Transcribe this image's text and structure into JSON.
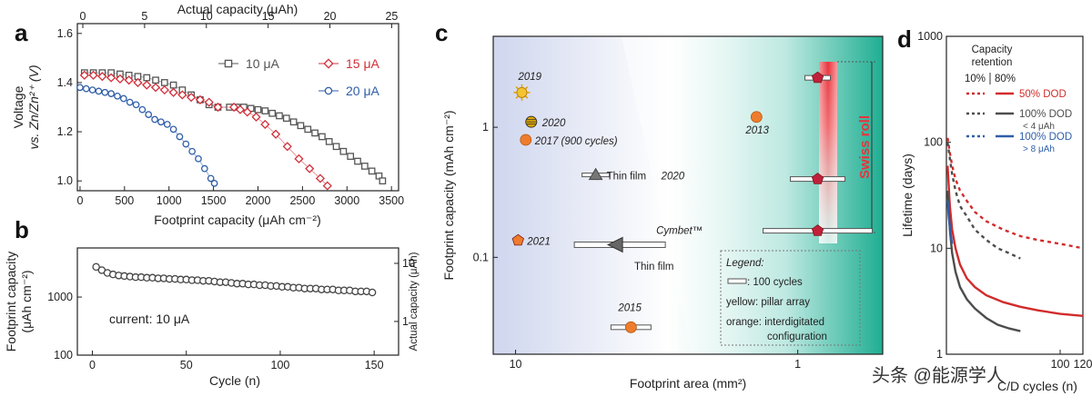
{
  "watermark": "头条 @能源学人",
  "chart_data": [
    {
      "panel": "a",
      "type": "line",
      "top_axis": {
        "label": "Actual capacity (μAh)",
        "ticks": [
          0,
          5,
          10,
          15,
          20,
          25
        ],
        "range": [
          0,
          26
        ]
      },
      "xlabel": "Footprint capacity (μAh cm⁻²)",
      "ylabel": "Voltage vs. Zn/Zn²⁺ (V)",
      "ylabel_lines": [
        "Voltage",
        "vs. Zn/Zn²⁺ (V)"
      ],
      "xlim": [
        -30,
        3580
      ],
      "ylim": [
        0.96,
        1.64
      ],
      "xticks": [
        0,
        500,
        1000,
        1500,
        2000,
        2500,
        3000,
        3500
      ],
      "yticks": [
        1.0,
        1.2,
        1.4,
        1.6
      ],
      "series": [
        {
          "name": "10 μA",
          "color": "#555555",
          "marker": "square",
          "x": [
            50,
            150,
            250,
            350,
            450,
            550,
            650,
            750,
            850,
            950,
            1050,
            1150,
            1250,
            1350,
            1450,
            1550,
            1680,
            1760,
            1840,
            1920,
            2000,
            2080,
            2160,
            2240,
            2320,
            2400,
            2480,
            2560,
            2640,
            2720,
            2800,
            2880,
            2960,
            3040,
            3120,
            3200,
            3280,
            3360,
            3400
          ],
          "y": [
            1.44,
            1.44,
            1.44,
            1.44,
            1.435,
            1.43,
            1.425,
            1.42,
            1.41,
            1.4,
            1.39,
            1.37,
            1.35,
            1.33,
            1.31,
            1.3,
            1.3,
            1.3,
            1.3,
            1.295,
            1.29,
            1.285,
            1.275,
            1.265,
            1.255,
            1.24,
            1.225,
            1.21,
            1.195,
            1.18,
            1.16,
            1.14,
            1.12,
            1.1,
            1.08,
            1.06,
            1.04,
            1.02,
            1.0
          ]
        },
        {
          "name": "15 μA",
          "color": "#d0303a",
          "marker": "diamond",
          "x": [
            50,
            150,
            250,
            350,
            450,
            550,
            650,
            750,
            850,
            950,
            1050,
            1150,
            1250,
            1350,
            1450,
            1550,
            1730,
            1800,
            1880,
            1980,
            2080,
            2200,
            2330,
            2460,
            2580,
            2700,
            2780
          ],
          "y": [
            1.43,
            1.43,
            1.425,
            1.42,
            1.415,
            1.41,
            1.4,
            1.39,
            1.38,
            1.37,
            1.36,
            1.35,
            1.34,
            1.33,
            1.32,
            1.3,
            1.3,
            1.29,
            1.28,
            1.26,
            1.23,
            1.19,
            1.14,
            1.09,
            1.05,
            1.01,
            0.98
          ]
        },
        {
          "name": "20 μA",
          "color": "#2f5ea8",
          "marker": "circle",
          "x": [
            0,
            70,
            140,
            210,
            280,
            350,
            420,
            490,
            560,
            630,
            700,
            770,
            840,
            910,
            980,
            1050,
            1120,
            1190,
            1260,
            1330,
            1400,
            1470,
            1510
          ],
          "y": [
            1.38,
            1.375,
            1.37,
            1.365,
            1.36,
            1.355,
            1.345,
            1.335,
            1.32,
            1.31,
            1.29,
            1.27,
            1.25,
            1.24,
            1.23,
            1.21,
            1.18,
            1.15,
            1.12,
            1.09,
            1.05,
            1.01,
            0.99
          ]
        }
      ]
    },
    {
      "panel": "b",
      "type": "scatter",
      "xlabel": "Cycle (n)",
      "ylabel": "Footprint capacity (μAh cm⁻²)",
      "ylabel_lines": [
        "Footprint capacity",
        "(μAh cm⁻²)"
      ],
      "ylabel_right": "Actual capacity (μAh)",
      "xlim": [
        -8,
        163
      ],
      "ylim_log": [
        100,
        7000
      ],
      "xticks": [
        0,
        50,
        100,
        150
      ],
      "yticks": [
        100,
        1000
      ],
      "right_yticks": [
        "1",
        "10"
      ],
      "annotation": "current: 10 μA",
      "series": [
        {
          "name": "",
          "color": "#444444",
          "marker": "circle",
          "x": [
            2,
            5,
            8,
            11,
            14,
            17,
            20,
            23,
            26,
            29,
            32,
            35,
            38,
            41,
            44,
            47,
            50,
            53,
            56,
            59,
            62,
            65,
            68,
            71,
            74,
            77,
            80,
            83,
            86,
            89,
            92,
            95,
            98,
            101,
            104,
            107,
            110,
            113,
            116,
            119,
            122,
            125,
            128,
            131,
            134,
            137,
            140,
            143,
            146,
            149
          ],
          "y": [
            3300,
            2900,
            2600,
            2450,
            2350,
            2300,
            2250,
            2200,
            2200,
            2150,
            2150,
            2100,
            2100,
            2050,
            2050,
            2000,
            2000,
            1950,
            1950,
            1900,
            1900,
            1850,
            1800,
            1800,
            1750,
            1700,
            1700,
            1650,
            1650,
            1600,
            1600,
            1550,
            1550,
            1500,
            1500,
            1450,
            1450,
            1400,
            1400,
            1400,
            1350,
            1350,
            1350,
            1300,
            1300,
            1300,
            1250,
            1250,
            1250,
            1200
          ]
        }
      ]
    },
    {
      "panel": "c",
      "type": "scatter",
      "xlabel": "Footprint area (mm²)",
      "ylabel": "Footprint capacity (mAh cm⁻²)",
      "x_reversed_log": true,
      "xlim_log": [
        12,
        0.5
      ],
      "ylim_log": [
        0.018,
        5
      ],
      "xticks": [
        10,
        1
      ],
      "yticks": [
        0.1,
        1
      ],
      "vertical_label": "Swiss roll",
      "points": [
        {
          "label": "2019",
          "x": 9.5,
          "y": 1.85,
          "color": "#f4c430",
          "kind": "sun"
        },
        {
          "label": "2020",
          "x": 8.8,
          "y": 1.1,
          "color": "#e2a800",
          "kind": "striped"
        },
        {
          "label": "2017 (900 cycles)",
          "x": 9.2,
          "y": 0.8,
          "color": "#ee7c2c",
          "kind": "circle"
        },
        {
          "label": "2013",
          "x": 1.4,
          "y": 1.2,
          "color": "#ee7c2c",
          "kind": "circle"
        },
        {
          "label": "2021",
          "x": 9.8,
          "y": 0.135,
          "color": "#ee7c2c",
          "kind": "pentagon"
        },
        {
          "label": "2015",
          "x": 3.9,
          "y": 0.029,
          "color": "#ee7c2c",
          "kind": "circle"
        },
        {
          "label": "Thin film 2020",
          "x": 5.2,
          "y": 0.43,
          "color": "#777777",
          "kind": "triangle-up"
        },
        {
          "label": "Cymbet™",
          "x": 4.4,
          "y": 0.125,
          "color": "#666666",
          "kind": "triangle-left"
        },
        {
          "label": "",
          "x": 0.85,
          "y": 2.4,
          "color": "#c0203a",
          "kind": "pentagon"
        },
        {
          "label": "",
          "x": 0.85,
          "y": 0.4,
          "color": "#c0203a",
          "kind": "pentagon"
        },
        {
          "label": "",
          "x": 0.85,
          "y": 0.16,
          "color": "#c0203a",
          "kind": "pentagon"
        }
      ],
      "thin_film_label": "Thin film",
      "legend": {
        "title": "Legend:",
        "items": [
          ": 100 cycles",
          "yellow: pillar array",
          "orange: interdigitated",
          "configuration"
        ]
      }
    },
    {
      "panel": "d",
      "type": "line",
      "xlabel": "C/D cycles (n)",
      "ylabel": "Lifetime (days)",
      "ylim_log": [
        1,
        1000
      ],
      "xlim": [
        0,
        120
      ],
      "xticks": [
        100,
        120
      ],
      "yticks": [
        1,
        10,
        100,
        1000
      ],
      "legend_title": [
        "Capacity",
        "retention"
      ],
      "legend_columns": [
        "10%",
        "80%"
      ],
      "series": [
        {
          "name": "50% DOD",
          "sub": "",
          "color": "#d22b2b",
          "x": [
            1,
            3,
            5,
            8,
            12,
            18,
            25,
            35,
            50,
            65,
            80,
            100,
            120
          ],
          "y_solid": [
            60,
            25,
            15,
            10,
            7,
            5.2,
            4.3,
            3.6,
            3.1,
            2.8,
            2.6,
            2.4,
            2.3
          ],
          "y_dashed": [
            110,
            80,
            60,
            45,
            35,
            28,
            22,
            18,
            15,
            13,
            12,
            11,
            10
          ]
        },
        {
          "name": "100% DOD",
          "sub": "< 4 μAh",
          "color": "#4d4d4d",
          "x": [
            1,
            3,
            5,
            8,
            12,
            18,
            25,
            35,
            45,
            55,
            65
          ],
          "y_solid": [
            35,
            15,
            9,
            6,
            4.3,
            3.3,
            2.7,
            2.2,
            1.9,
            1.75,
            1.65
          ],
          "y_dashed": [
            100,
            70,
            50,
            35,
            25,
            20,
            15,
            12,
            10,
            9,
            8
          ]
        },
        {
          "name": "100% DOD",
          "sub": "> 8 μAh",
          "color": "#2f5ea8",
          "x": [
            1,
            2,
            3,
            4,
            5
          ],
          "y_solid": [
            28,
            20,
            16,
            13,
            11
          ],
          "y_dashed": []
        }
      ]
    }
  ]
}
